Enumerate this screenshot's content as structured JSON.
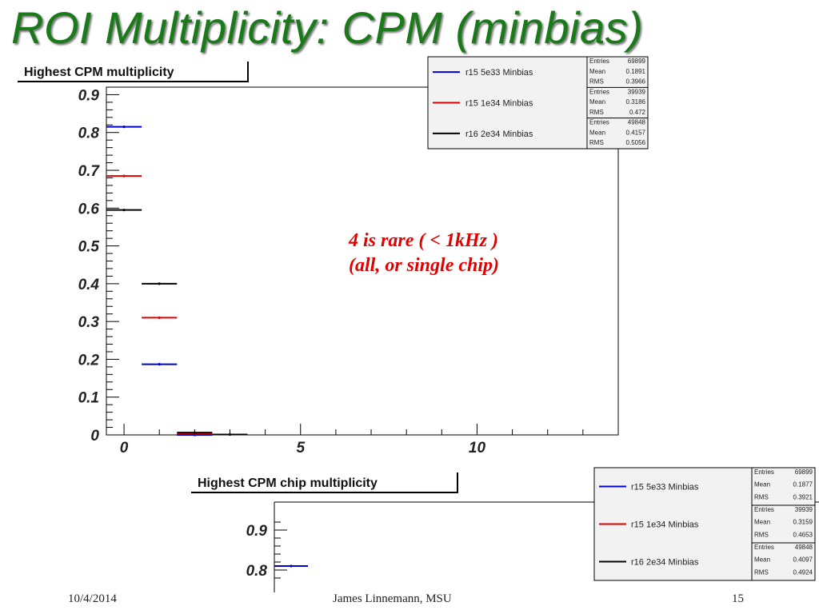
{
  "slide": {
    "title": "ROI Multiplicity: CPM  (minbias)",
    "annotation_line1": "4 is rare   ( < 1kHz )",
    "annotation_line2": "(all, or single chip)"
  },
  "footer": {
    "date": "10/4/2014",
    "author": "James Linnemann, MSU",
    "page": "15"
  },
  "chart_data": [
    {
      "type": "histogram",
      "title": "Highest CPM multiplicity",
      "x_ticks": [
        "0",
        "5",
        "10"
      ],
      "y_ticks": [
        "0",
        "0.1",
        "0.2",
        "0.3",
        "0.4",
        "0.5",
        "0.6",
        "0.7",
        "0.8",
        "0.9"
      ],
      "xlim": [
        -0.5,
        14.0
      ],
      "ylim": [
        0,
        0.92
      ],
      "grid": false,
      "legend_position": "top-right",
      "stat_labels": [
        "Entries",
        "Mean",
        "RMS"
      ],
      "series": [
        {
          "name": "r15 5e33 Minbias",
          "color": "#0000cc",
          "entries": "69899",
          "mean": "0.1891",
          "rms": "0.3966",
          "points": [
            {
              "x": 0,
              "y": 0.815
            },
            {
              "x": 1,
              "y": 0.187
            },
            {
              "x": 2,
              "y": 0.0
            }
          ]
        },
        {
          "name": "r15 1e34 Minbias",
          "color": "#dd0000",
          "entries": "39939",
          "mean": "0.3186",
          "rms": "0.472",
          "points": [
            {
              "x": 0,
              "y": 0.685
            },
            {
              "x": 1,
              "y": 0.31
            },
            {
              "x": 2,
              "y": 0.004
            }
          ]
        },
        {
          "name": "r16 2e34 Minbias",
          "color": "#000000",
          "entries": "49848",
          "mean": "0.4157",
          "rms": "0.5056",
          "points": [
            {
              "x": 0,
              "y": 0.595
            },
            {
              "x": 1,
              "y": 0.4
            },
            {
              "x": 2,
              "y": 0.006
            },
            {
              "x": 3,
              "y": 0.001
            }
          ]
        }
      ]
    },
    {
      "type": "histogram",
      "title": "Highest CPM chip multiplicity",
      "y_ticks": [
        "0.8",
        "0.9"
      ],
      "legend_position": "top-right",
      "stat_labels": [
        "Entries",
        "Mean",
        "RMS"
      ],
      "series": [
        {
          "name": "r15 5e33 Minbias",
          "color": "#0000cc",
          "entries": "69899",
          "mean": "0.1877",
          "rms": "0.3921",
          "points": [
            {
              "x": 0,
              "y": 0.81
            }
          ]
        },
        {
          "name": "r15 1e34 Minbias",
          "color": "#dd0000",
          "entries": "39939",
          "mean": "0.3159",
          "rms": "0.4653",
          "points": []
        },
        {
          "name": "r16 2e34 Minbias",
          "color": "#000000",
          "entries": "49848",
          "mean": "0.4097",
          "rms": "0.4924",
          "points": []
        }
      ]
    }
  ]
}
